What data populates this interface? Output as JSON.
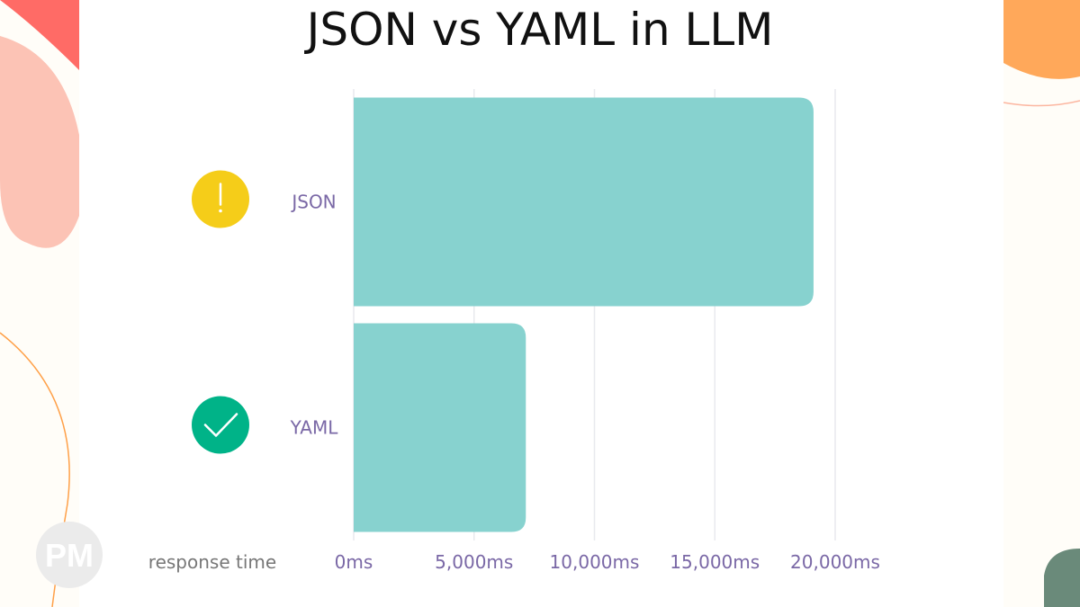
{
  "chart_data": {
    "type": "bar",
    "orientation": "horizontal",
    "title": "JSON vs YAML in LLM",
    "xlabel": "response time",
    "categories": [
      "JSON",
      "YAML"
    ],
    "values": [
      19100,
      7150
    ],
    "category_icons": [
      "exclamation-icon",
      "check-icon"
    ],
    "icon_colors": [
      "#f5cd19",
      "#00b388"
    ],
    "xlim": [
      0,
      20000
    ],
    "xticks": [
      0,
      5000,
      10000,
      15000,
      20000
    ],
    "xtick_labels": [
      "0ms",
      "5,000ms",
      "10,000ms",
      "15,000ms",
      "20,000ms"
    ],
    "grid": true,
    "bar_color": "#87d2cf",
    "label_color": "#7a68a6"
  },
  "logo": "PM"
}
